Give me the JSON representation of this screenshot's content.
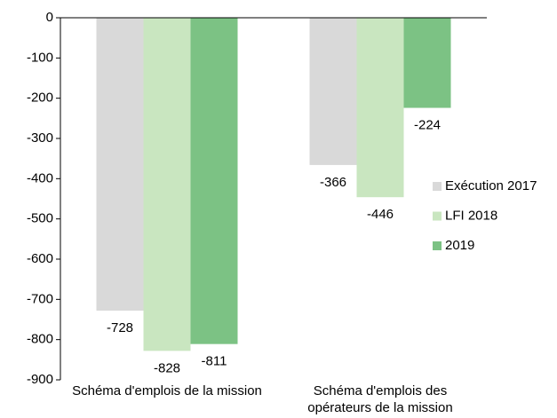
{
  "chart_data": {
    "type": "bar",
    "categories": [
      "Schéma d'emplois de la mission",
      "Schéma d'emplois des opérateurs de la mission"
    ],
    "series": [
      {
        "name": "Exécution 2017",
        "color": "#d9d9d9",
        "values": [
          -728,
          -366
        ]
      },
      {
        "name": "LFI 2018",
        "color": "#c9e6c0",
        "values": [
          -828,
          -446
        ]
      },
      {
        "name": "2019",
        "color": "#7cc284",
        "values": [
          -811,
          -224
        ]
      }
    ],
    "ylim": [
      -900,
      0
    ],
    "yticks": [
      0,
      -100,
      -200,
      -300,
      -400,
      -500,
      -600,
      -700,
      -800,
      -900
    ]
  }
}
